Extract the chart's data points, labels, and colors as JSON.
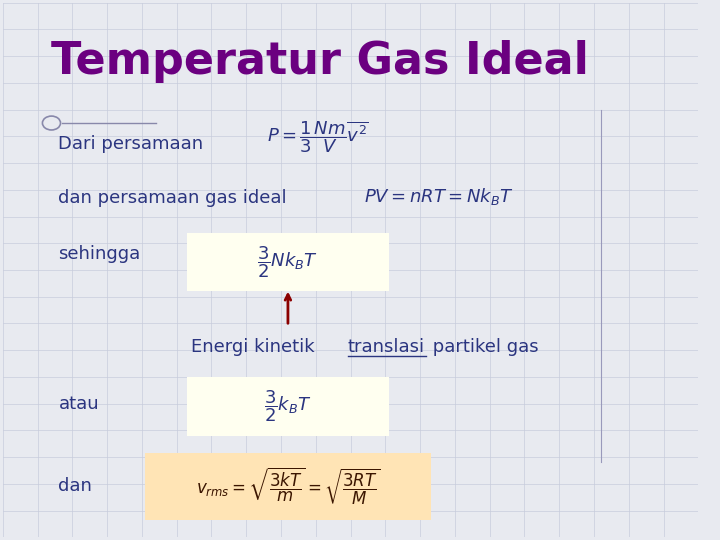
{
  "title": "Temperatur Gas Ideal",
  "title_color": "#6B0080",
  "title_fontsize": 32,
  "bg_color": "#E8EAF0",
  "bg_grid_color": "#C8CCDC",
  "text_color": "#2B3580",
  "label_dari": "Dari persamaan",
  "label_dan": "dan persamaan gas ideal",
  "label_sehingga": "sehingga",
  "label_atau": "atau",
  "label_dan2": "dan",
  "formula1": "$P = \\dfrac{1}{3}\\dfrac{Nm}{V}\\overline{v^2}$",
  "formula2": "$PV = nRT = Nk_BT$",
  "formula_box1": "$\\dfrac{3}{2}Nk_BT$",
  "formula_box2": "$\\dfrac{3}{2}k_BT$",
  "formula_vrms": "$v_{rms} = \\sqrt{\\dfrac{3kT}{m}} = \\sqrt{\\dfrac{3RT}{M}}$",
  "box1_color": "#FFFFF0",
  "box2_color": "#FFE4B5",
  "arrow_color": "#8B0000"
}
